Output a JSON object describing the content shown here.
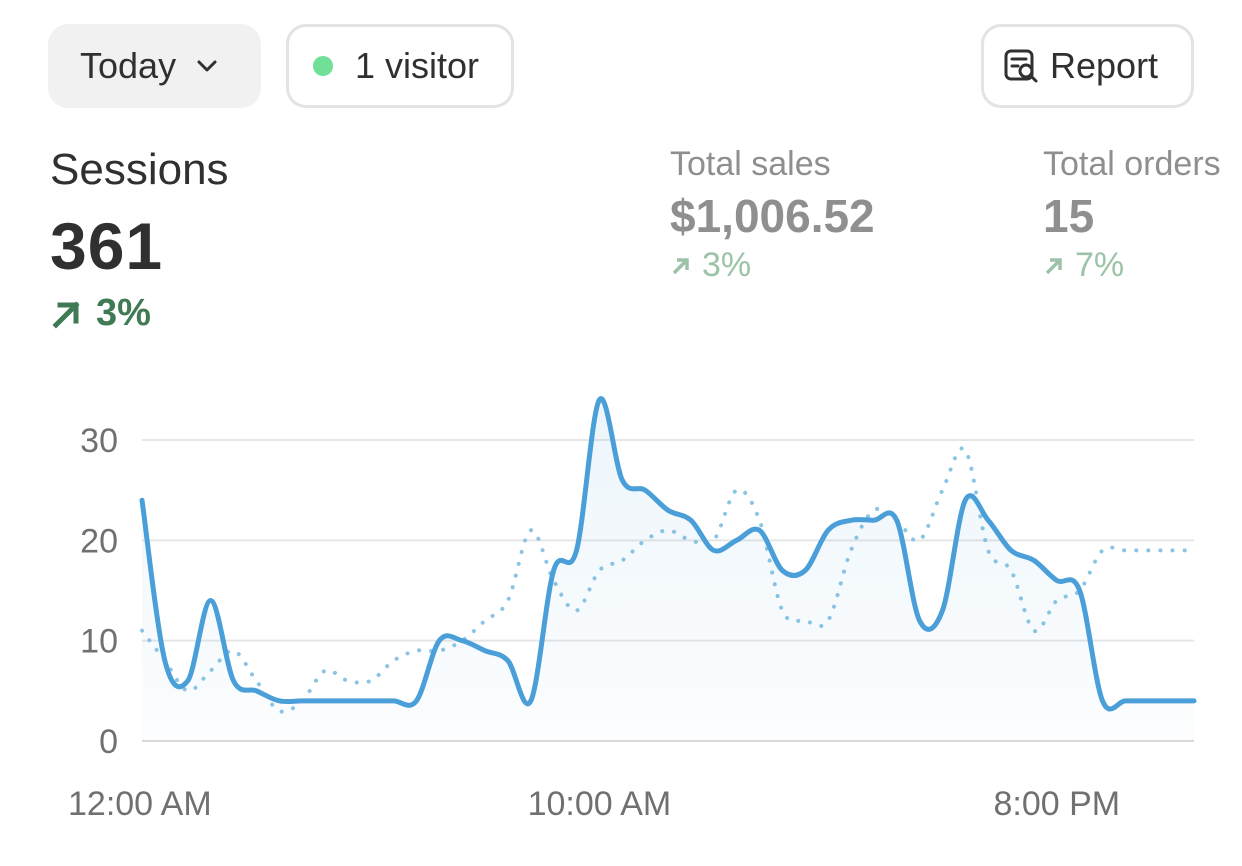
{
  "toolbar": {
    "date_range": "Today",
    "visitors": "1 visitor",
    "report_label": "Report",
    "live_dot_color": "#6fe096"
  },
  "metrics": {
    "sessions": {
      "label": "Sessions",
      "value": "361",
      "change": "3%"
    },
    "total_sales": {
      "label": "Total sales",
      "value": "$1,006.52",
      "change": "3%"
    },
    "total_orders": {
      "label": "Total orders",
      "value": "15",
      "change": "7%"
    }
  },
  "colors": {
    "positive": "#3f7a55",
    "positive_muted": "#9cc3a8",
    "series_current": "#4a9fd8",
    "series_previous": "#8cc5e4"
  },
  "chart_data": {
    "type": "line",
    "y_ticks": [
      0,
      10,
      20,
      30
    ],
    "ylim": [
      0,
      34
    ],
    "x_tick_labels": [
      "12:00 AM",
      "10:00 AM",
      "8:00 PM"
    ],
    "x_tick_hours": [
      0,
      10,
      20
    ],
    "x_range_hours": [
      0,
      23
    ],
    "grid": true,
    "series": [
      {
        "style": "solid-area",
        "hours": [
          0,
          0.5,
          1,
          1.5,
          2,
          2.5,
          3,
          3.5,
          4,
          4.5,
          5,
          5.5,
          6,
          6.5,
          7,
          7.5,
          8,
          8.5,
          9,
          9.5,
          10,
          10.5,
          11,
          11.5,
          12,
          12.5,
          13,
          13.5,
          14,
          14.5,
          15,
          15.5,
          16,
          16.5,
          17,
          17.5,
          18,
          18.5,
          19,
          19.5,
          20,
          20.5,
          21,
          21.5,
          22,
          22.5,
          23
        ],
        "values": [
          24,
          8,
          6,
          14,
          6,
          5,
          4,
          4,
          4,
          4,
          4,
          4,
          4,
          10,
          10,
          9,
          8,
          4,
          17,
          19,
          34,
          26,
          25,
          23,
          22,
          19,
          20,
          21,
          17,
          17,
          21,
          22,
          22,
          22,
          12,
          13,
          24,
          22,
          19,
          18,
          16,
          15,
          4,
          4,
          4,
          4,
          4
        ]
      },
      {
        "style": "dotted",
        "hours": [
          0,
          0.5,
          1,
          1.5,
          2,
          2.5,
          3,
          3.5,
          4,
          4.5,
          5,
          5.5,
          6,
          6.5,
          7,
          7.5,
          8,
          8.5,
          9,
          9.5,
          10,
          10.5,
          11,
          11.5,
          12,
          12.5,
          13,
          13.5,
          14,
          14.5,
          15,
          15.5,
          16,
          16.5,
          17,
          17.5,
          18,
          18.5,
          19,
          19.5,
          20,
          20.5,
          21,
          21.5,
          22,
          22.5,
          23
        ],
        "values": [
          11,
          8,
          5,
          7,
          9,
          6,
          3,
          4,
          7,
          6,
          6,
          8,
          9,
          9,
          10,
          12,
          14,
          21,
          16,
          13,
          17,
          18,
          20,
          21,
          20,
          20,
          25,
          22,
          13,
          12,
          12,
          19,
          23,
          22,
          20,
          25,
          29,
          19,
          17,
          11,
          14,
          15,
          19,
          19,
          19,
          19,
          19
        ]
      }
    ]
  }
}
